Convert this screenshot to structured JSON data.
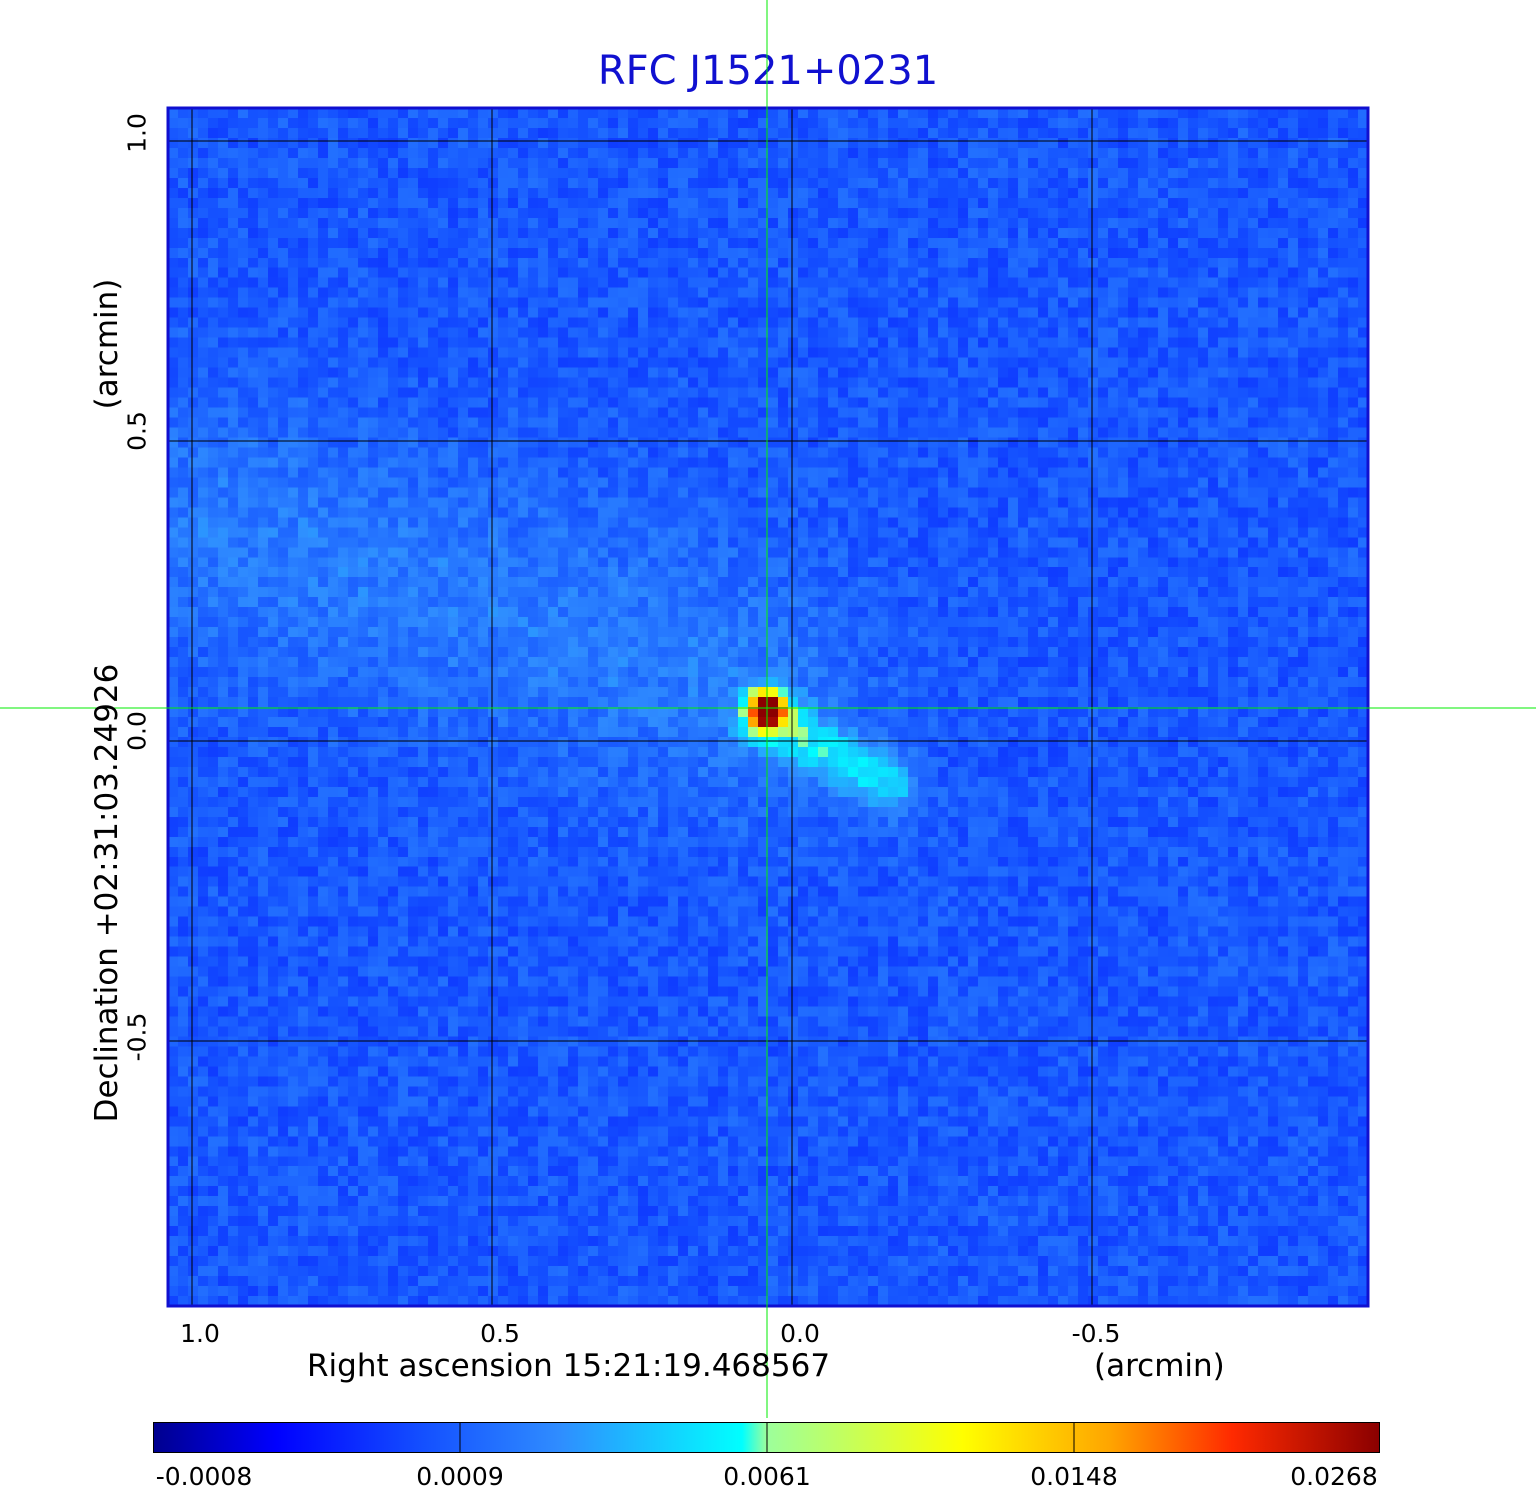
{
  "chart_data": {
    "type": "heatmap",
    "title": "RFC J1521+0231",
    "xlabel": "Right ascension  15:21:19.468567",
    "xunit": "(arcmin)",
    "ylabel": "Declination  +02:31:03.24926",
    "yunit": "(arcmin)",
    "x_ticks": [
      "1.0",
      "0.5",
      "0.0",
      "-0.5"
    ],
    "y_ticks": [
      "1.0",
      "0.5",
      "0.0",
      "-0.5"
    ],
    "xlim": [
      1.04,
      -0.96
    ],
    "ylim": [
      -0.94,
      1.06
    ],
    "grid": true,
    "crosshair": {
      "x": 0.042,
      "y": 0.054
    },
    "colormap": "jet",
    "colorbar_ticks": [
      "-0.0008",
      "0.0009",
      "0.0061",
      "0.0148",
      "0.0268"
    ],
    "colorbar_range": [
      -0.0008,
      0.0268
    ],
    "features": [
      {
        "name": "core",
        "x": 0.042,
        "y": 0.054,
        "peak": 0.0268
      },
      {
        "name": "jet",
        "x_from": 0.04,
        "y_from": 0.04,
        "x_to": -0.16,
        "y_to": -0.07
      },
      {
        "name": "diffuse-lobe",
        "x_from": 0.95,
        "y_from": 0.36,
        "x_to": 0.1,
        "y_to": 0.1
      }
    ]
  },
  "colors": {
    "title": "#1010d0",
    "grid": "#000000",
    "crosshair": "#00ee00",
    "frame": "#1010d0"
  }
}
